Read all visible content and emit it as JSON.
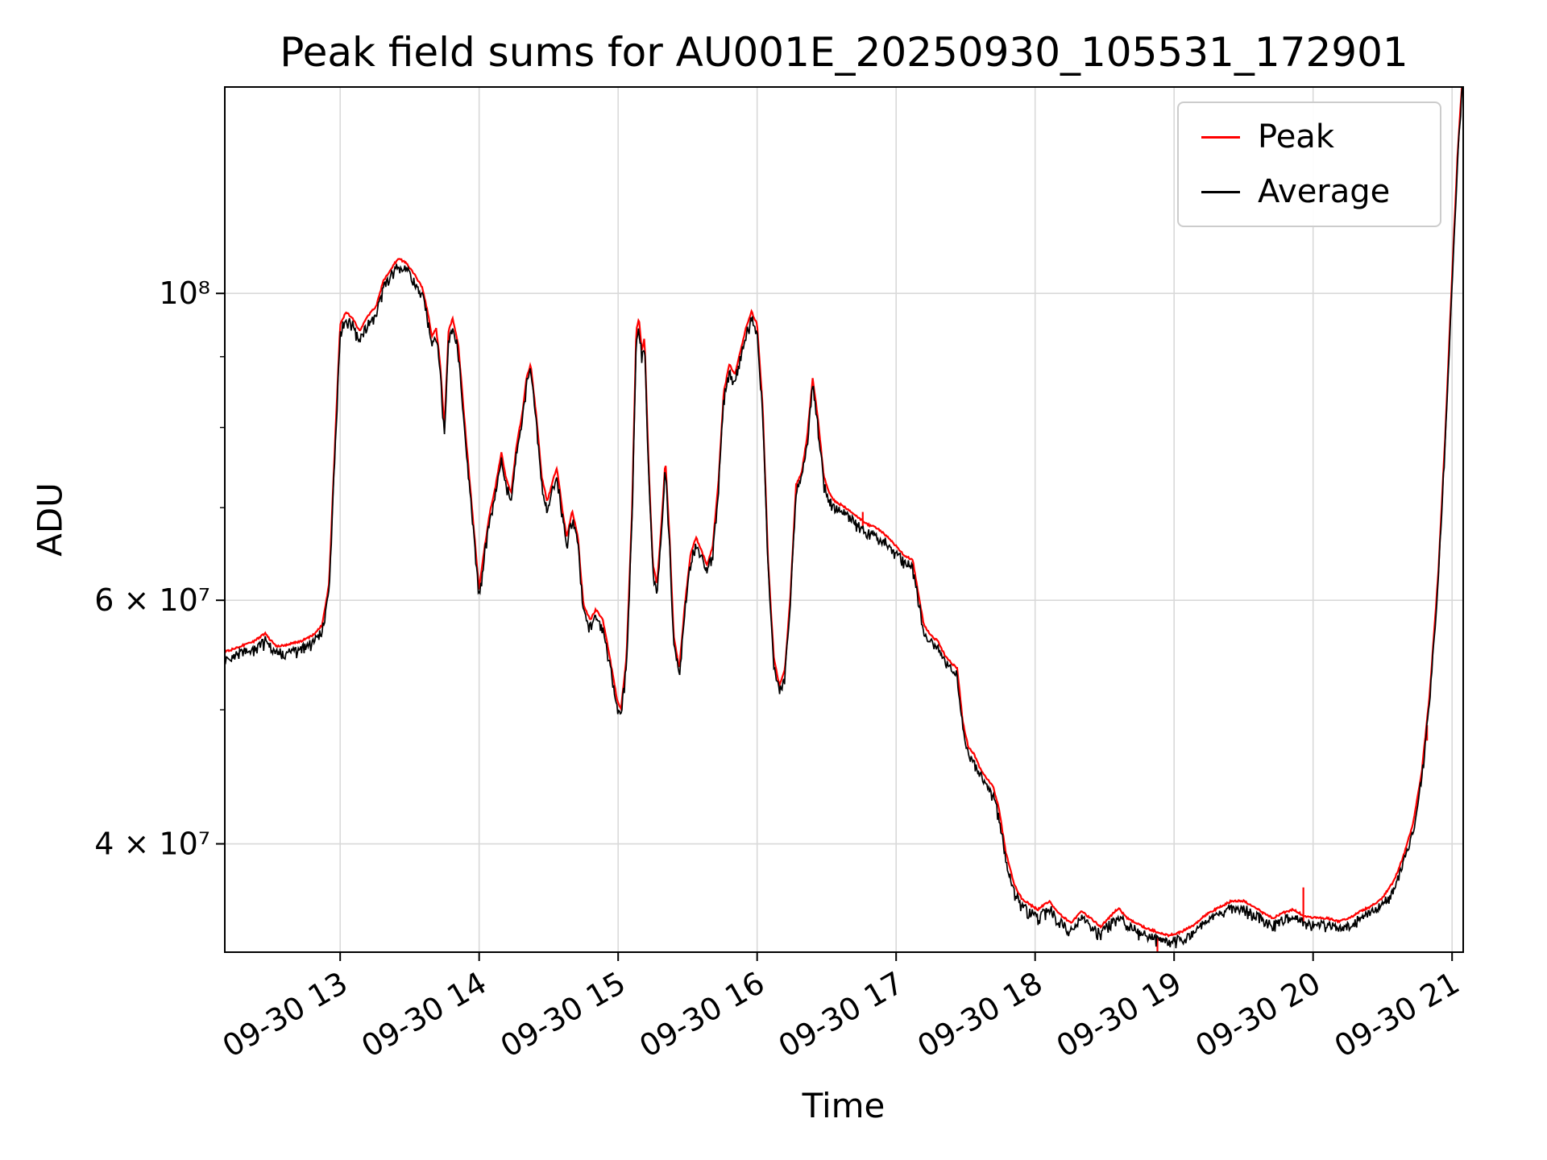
{
  "chart_data": {
    "type": "line",
    "title": "Peak field sums for AU001E_20250930_105531_172901",
    "xlabel": "Time",
    "ylabel": "ADU",
    "yscale": "log",
    "grid": true,
    "legend_position": "upper right",
    "xlim_hours": [
      12.17,
      21.08
    ],
    "ylim": [
      33400000.0,
      141000000.0
    ],
    "x_ticks": [
      "09-30 13",
      "09-30 14",
      "09-30 15",
      "09-30 16",
      "09-30 17",
      "09-30 18",
      "09-30 19",
      "09-30 20",
      "09-30 21"
    ],
    "x_tick_hours": [
      13,
      14,
      15,
      16,
      17,
      18,
      19,
      20,
      21
    ],
    "y_ticks": [
      {
        "value": 40000000.0,
        "label": "4 × 10⁷"
      },
      {
        "value": 60000000.0,
        "label": "6 × 10⁷"
      },
      {
        "value": 100000000.0,
        "label": "10⁸"
      }
    ],
    "y_minor_ticks": [
      50000000.0,
      70000000.0,
      80000000.0,
      90000000.0
    ],
    "grid_color": "#d9d9d9",
    "series": [
      {
        "name": "Peak",
        "color": "#ff0000",
        "offset": 1.01,
        "noise_pct": 0.4
      },
      {
        "name": "Average",
        "color": "#000000",
        "offset": 1.0,
        "noise_pct": 1.2
      }
    ],
    "base_points": [
      [
        12.17,
        54500000.0
      ],
      [
        12.28,
        55000000.0
      ],
      [
        12.38,
        55500000.0
      ],
      [
        12.46,
        56200000.0
      ],
      [
        12.54,
        55000000.0
      ],
      [
        12.63,
        55200000.0
      ],
      [
        12.72,
        55500000.0
      ],
      [
        12.8,
        56000000.0
      ],
      [
        12.87,
        57000000.0
      ],
      [
        12.92,
        61000000.0
      ],
      [
        12.96,
        76000000.0
      ],
      [
        13.0,
        94000000.0
      ],
      [
        13.04,
        96000000.0
      ],
      [
        13.09,
        95000000.0
      ],
      [
        13.14,
        93000000.0
      ],
      [
        13.19,
        95000000.0
      ],
      [
        13.26,
        97000000.0
      ],
      [
        13.31,
        101000000.0
      ],
      [
        13.36,
        103000000.0
      ],
      [
        13.42,
        105000000.0
      ],
      [
        13.48,
        104000000.0
      ],
      [
        13.54,
        102000000.0
      ],
      [
        13.59,
        100000000.0
      ],
      [
        13.63,
        96000000.0
      ],
      [
        13.66,
        92000000.0
      ],
      [
        13.69,
        93500000.0
      ],
      [
        13.72,
        88000000.0
      ],
      [
        13.75,
        79000000.0
      ],
      [
        13.78,
        93000000.0
      ],
      [
        13.81,
        95000000.0
      ],
      [
        13.85,
        91000000.0
      ],
      [
        13.9,
        79000000.0
      ],
      [
        13.95,
        69000000.0
      ],
      [
        14.0,
        60500000.0
      ],
      [
        14.04,
        65000000.0
      ],
      [
        14.08,
        69000000.0
      ],
      [
        14.12,
        72000000.0
      ],
      [
        14.16,
        76000000.0
      ],
      [
        14.19,
        73000000.0
      ],
      [
        14.23,
        71000000.0
      ],
      [
        14.27,
        77000000.0
      ],
      [
        14.31,
        81000000.0
      ],
      [
        14.34,
        86000000.0
      ],
      [
        14.37,
        88000000.0
      ],
      [
        14.41,
        81000000.0
      ],
      [
        14.45,
        73000000.0
      ],
      [
        14.49,
        70000000.0
      ],
      [
        14.53,
        72500000.0
      ],
      [
        14.56,
        74000000.0
      ],
      [
        14.6,
        69000000.0
      ],
      [
        14.63,
        66000000.0
      ],
      [
        14.67,
        69000000.0
      ],
      [
        14.71,
        66000000.0
      ],
      [
        14.75,
        59000000.0
      ],
      [
        14.8,
        57500000.0
      ],
      [
        14.84,
        58500000.0
      ],
      [
        14.89,
        57500000.0
      ],
      [
        14.94,
        54000000.0
      ],
      [
        14.99,
        50500000.0
      ],
      [
        15.02,
        49500000.0
      ],
      [
        15.06,
        54000000.0
      ],
      [
        15.1,
        69000000.0
      ],
      [
        15.13,
        93000000.0
      ],
      [
        15.15,
        95000000.0
      ],
      [
        15.17,
        90000000.0
      ],
      [
        15.19,
        92000000.0
      ],
      [
        15.22,
        74000000.0
      ],
      [
        15.25,
        63000000.0
      ],
      [
        15.28,
        61000000.0
      ],
      [
        15.31,
        67000000.0
      ],
      [
        15.34,
        75000000.0
      ],
      [
        15.37,
        66000000.0
      ],
      [
        15.4,
        56000000.0
      ],
      [
        15.44,
        53000000.0
      ],
      [
        15.48,
        59000000.0
      ],
      [
        15.52,
        64000000.0
      ],
      [
        15.56,
        66000000.0
      ],
      [
        15.6,
        64500000.0
      ],
      [
        15.64,
        63000000.0
      ],
      [
        15.68,
        65000000.0
      ],
      [
        15.72,
        72000000.0
      ],
      [
        15.76,
        84000000.0
      ],
      [
        15.8,
        88000000.0
      ],
      [
        15.84,
        86500000.0
      ],
      [
        15.88,
        90000000.0
      ],
      [
        15.92,
        93500000.0
      ],
      [
        15.96,
        96000000.0
      ],
      [
        16.0,
        94000000.0
      ],
      [
        16.04,
        82000000.0
      ],
      [
        16.08,
        63000000.0
      ],
      [
        16.12,
        54000000.0
      ],
      [
        16.16,
        51500000.0
      ],
      [
        16.2,
        53000000.0
      ],
      [
        16.24,
        60000000.0
      ],
      [
        16.28,
        72000000.0
      ],
      [
        16.32,
        73500000.0
      ],
      [
        16.36,
        78000000.0
      ],
      [
        16.4,
        86000000.0
      ],
      [
        16.44,
        80000000.0
      ],
      [
        16.48,
        73000000.0
      ],
      [
        16.52,
        71000000.0
      ],
      [
        16.56,
        70000000.0
      ],
      [
        16.62,
        69500000.0
      ],
      [
        16.7,
        68500000.0
      ],
      [
        16.78,
        67500000.0
      ],
      [
        16.86,
        67000000.0
      ],
      [
        16.94,
        66000000.0
      ],
      [
        17.0,
        65000000.0
      ],
      [
        17.06,
        64000000.0
      ],
      [
        17.12,
        63500000.0
      ],
      [
        17.16,
        60000000.0
      ],
      [
        17.2,
        57000000.0
      ],
      [
        17.25,
        56000000.0
      ],
      [
        17.3,
        55500000.0
      ],
      [
        17.35,
        54200000.0
      ],
      [
        17.4,
        53500000.0
      ],
      [
        17.44,
        53000000.0
      ],
      [
        17.48,
        48500000.0
      ],
      [
        17.52,
        46500000.0
      ],
      [
        17.56,
        46000000.0
      ],
      [
        17.6,
        45000000.0
      ],
      [
        17.65,
        44200000.0
      ],
      [
        17.7,
        43500000.0
      ],
      [
        17.74,
        42000000.0
      ],
      [
        17.79,
        39000000.0
      ],
      [
        17.85,
        37000000.0
      ],
      [
        17.9,
        36200000.0
      ],
      [
        17.96,
        35800000.0
      ],
      [
        18.02,
        35500000.0
      ],
      [
        18.1,
        36000000.0
      ],
      [
        18.18,
        35200000.0
      ],
      [
        18.26,
        34700000.0
      ],
      [
        18.33,
        35400000.0
      ],
      [
        18.4,
        35000000.0
      ],
      [
        18.47,
        34500000.0
      ],
      [
        18.53,
        35000000.0
      ],
      [
        18.6,
        35600000.0
      ],
      [
        18.66,
        35000000.0
      ],
      [
        18.73,
        34700000.0
      ],
      [
        18.8,
        34400000.0
      ],
      [
        18.88,
        34200000.0
      ],
      [
        18.96,
        34000000.0
      ],
      [
        19.05,
        34200000.0
      ],
      [
        19.14,
        34600000.0
      ],
      [
        19.23,
        35200000.0
      ],
      [
        19.32,
        35600000.0
      ],
      [
        19.41,
        36000000.0
      ],
      [
        19.5,
        36000000.0
      ],
      [
        19.57,
        35700000.0
      ],
      [
        19.64,
        35300000.0
      ],
      [
        19.71,
        35000000.0
      ],
      [
        19.78,
        35300000.0
      ],
      [
        19.86,
        35500000.0
      ],
      [
        19.94,
        35100000.0
      ],
      [
        20.02,
        35000000.0
      ],
      [
        20.1,
        35000000.0
      ],
      [
        20.18,
        34800000.0
      ],
      [
        20.26,
        35000000.0
      ],
      [
        20.34,
        35400000.0
      ],
      [
        20.42,
        35700000.0
      ],
      [
        20.5,
        36200000.0
      ],
      [
        20.58,
        37200000.0
      ],
      [
        20.65,
        38800000.0
      ],
      [
        20.72,
        41000000.0
      ],
      [
        20.78,
        44500000.0
      ],
      [
        20.84,
        51000000.0
      ],
      [
        20.9,
        62000000.0
      ],
      [
        20.95,
        78000000.0
      ],
      [
        21.0,
        102000000.0
      ],
      [
        21.04,
        125000000.0
      ],
      [
        21.08,
        145000000.0
      ]
    ],
    "peak_spikes": [
      [
        16.76,
        69500000.0
      ],
      [
        18.88,
        33000000.0
      ],
      [
        19.93,
        37200000.0
      ],
      [
        20.82,
        47500000.0
      ]
    ]
  }
}
